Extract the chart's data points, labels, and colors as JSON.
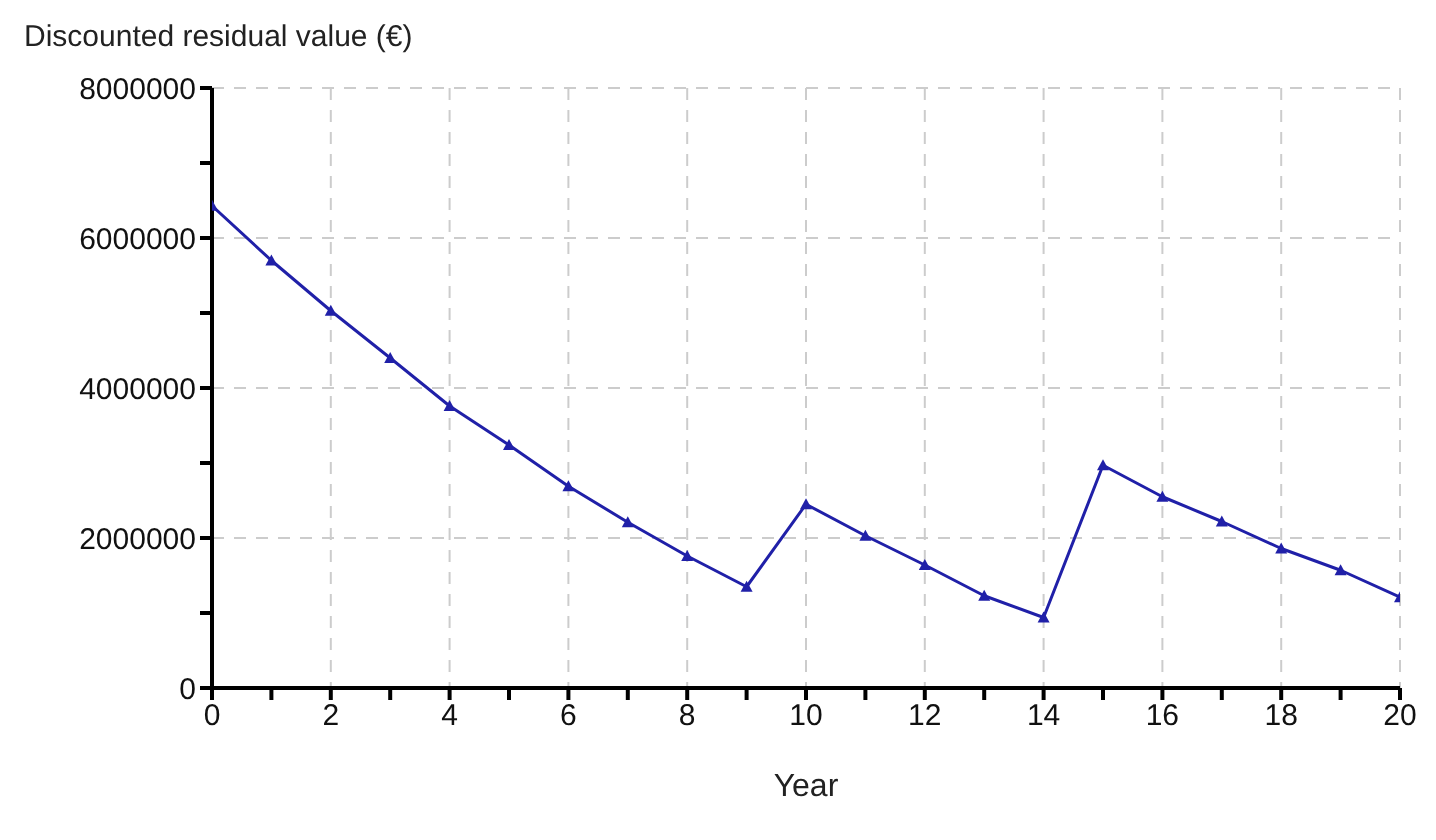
{
  "chart_data": {
    "type": "line",
    "ylabel": "Discounted residual value (€)",
    "xlabel": "Year",
    "x": [
      0,
      1,
      2,
      3,
      4,
      5,
      6,
      7,
      8,
      9,
      10,
      11,
      12,
      13,
      14,
      15,
      16,
      17,
      18,
      19,
      20
    ],
    "series": [
      {
        "color": "#2020a8",
        "values": [
          6430000,
          5700000,
          5030000,
          4400000,
          3760000,
          3240000,
          2690000,
          2210000,
          1760000,
          1350000,
          2450000,
          2030000,
          1640000,
          1230000,
          940000,
          2970000,
          2550000,
          2220000,
          1860000,
          1570000,
          1210000
        ]
      }
    ],
    "xlim": [
      0,
      20
    ],
    "xticks": [
      0,
      {
        "value": 1,
        "label": null
      },
      2,
      {
        "value": 3,
        "label": null
      },
      4,
      {
        "value": 5,
        "label": null
      },
      6,
      {
        "value": 7,
        "label": null
      },
      8,
      {
        "value": 9,
        "label": null
      },
      10,
      {
        "value": 11,
        "label": null
      },
      12,
      {
        "value": 13,
        "label": null
      },
      14,
      {
        "value": 15,
        "label": null
      },
      16,
      {
        "value": 17,
        "label": null
      },
      18,
      {
        "value": 19,
        "label": null
      },
      20
    ],
    "ylim": [
      0,
      8000000
    ],
    "yticks": [
      0,
      {
        "value": 1000000,
        "label": null
      },
      2000000,
      {
        "value": 3000000,
        "label": null
      },
      4000000,
      {
        "value": 5000000,
        "label": null
      },
      6000000,
      {
        "value": 7000000,
        "label": null
      },
      8000000
    ],
    "grid": true,
    "marker": "triangle",
    "line_style": "solid",
    "legend": false
  }
}
